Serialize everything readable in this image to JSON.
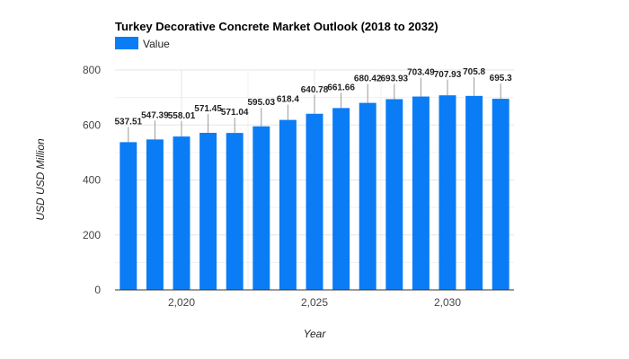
{
  "chart_data": {
    "type": "bar",
    "title": "Turkey Decorative Concrete Market Outlook (2018 to 2032)",
    "xlabel": "Year",
    "ylabel": "USD USD Million",
    "legend": {
      "position": "top-left",
      "entries": [
        "Value"
      ]
    },
    "colors": {
      "bar": "#0a7cf5",
      "grid": "#e6e6e6"
    },
    "grid": true,
    "ylim": [
      0,
      800
    ],
    "yticks": [
      0,
      200,
      400,
      600,
      800
    ],
    "ytick_labels": [
      "0",
      "200",
      "400",
      "600",
      "800"
    ],
    "xticks": [
      2020,
      2025,
      2030
    ],
    "xtick_labels": [
      "2,020",
      "2,025",
      "2,030"
    ],
    "series": [
      {
        "name": "Value",
        "x": [
          2018,
          2019,
          2020,
          2021,
          2022,
          2023,
          2024,
          2025,
          2026,
          2027,
          2028,
          2029,
          2030,
          2031,
          2032
        ],
        "values": [
          537.51,
          547.39,
          558.01,
          571.45,
          571.04,
          595.03,
          618.4,
          640.78,
          661.66,
          680.42,
          693.93,
          703.49,
          707.93,
          705.8,
          695.3
        ],
        "labels": [
          "537.51",
          "547.39",
          "558.01",
          "571.45",
          "571.04",
          "595.03",
          "618.4",
          "640.78",
          "661.66",
          "680.42",
          "693.93",
          "703.49",
          "707.93",
          "705.8",
          "695.3"
        ]
      }
    ]
  }
}
